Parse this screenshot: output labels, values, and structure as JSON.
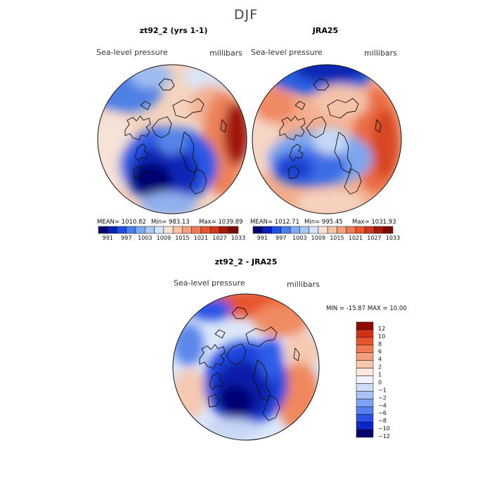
{
  "page_title": "DJF",
  "panels": [
    {
      "title": "zt92_2 (yrs 1-1)",
      "variable": "Sea-level pressure",
      "units": "millibars",
      "stats": {
        "mean": "MEAN= 1010.82",
        "min": "Min= 983.13",
        "max": "Max= 1039.89"
      }
    },
    {
      "title": "JRA25",
      "variable": "Sea-level pressure",
      "units": "millibars",
      "stats": {
        "mean": "MEAN= 1012.71",
        "min": "Min= 995.45",
        "max": "Max= 1031.93"
      }
    },
    {
      "title": "zt92_2 - JRA25",
      "variable": "Sea-level pressure",
      "units": "millibars",
      "stats_line": "MIN = -15.87 MAX =   10.00"
    }
  ],
  "colorbar_abs": {
    "colors": [
      "#08006e",
      "#0a22b4",
      "#1f4fe0",
      "#4a7fe8",
      "#7fa8ee",
      "#aac6f3",
      "#d5e3f8",
      "#f7e1d2",
      "#f5c2a6",
      "#f3a07c",
      "#ef7b56",
      "#e85630",
      "#d1371d",
      "#a41a0e",
      "#7a0a04"
    ],
    "labels": [
      "991",
      "997",
      "1003",
      "1009",
      "1015",
      "1021",
      "1027",
      "1033"
    ]
  },
  "colorbar_diff": {
    "colors": [
      "#08006e",
      "#0d27c6",
      "#2a52e6",
      "#5581ec",
      "#7fa3f0",
      "#a9c3f5",
      "#cfddf8",
      "#eff4fc",
      "#fbe7dc",
      "#f8c8ae",
      "#f3a27d",
      "#ef7b55",
      "#e85630",
      "#cf3218",
      "#8e0b03"
    ],
    "labels": [
      "12",
      "10",
      "8",
      "6",
      "4",
      "2",
      "1",
      "0",
      "−1",
      "−2",
      "−4",
      "−6",
      "−8",
      "−10",
      "−12"
    ]
  }
}
